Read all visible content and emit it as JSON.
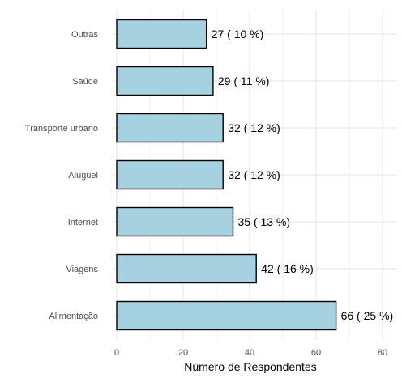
{
  "chart_data": {
    "type": "bar",
    "orientation": "horizontal",
    "categories": [
      "Outras",
      "Saúde",
      "Transporte urbano",
      "Aluguel",
      "Internet",
      "Viagens",
      "Alimentação"
    ],
    "values": [
      27,
      29,
      32,
      32,
      35,
      42,
      66
    ],
    "data_labels": [
      "27 ( 10 %)",
      "29 ( 11 %)",
      "32 ( 12 %)",
      "32 ( 12 %)",
      "35 ( 13 %)",
      "42 ( 16 %)",
      "66 ( 25 %)"
    ],
    "xlabel": "Número de Respondentes",
    "ylabel": "",
    "xlim": [
      0,
      80
    ],
    "xticks": [
      0,
      20,
      40,
      60,
      80
    ],
    "grid": true,
    "bar_color": "#a6d1e0",
    "bar_edge_color": "#000000"
  }
}
